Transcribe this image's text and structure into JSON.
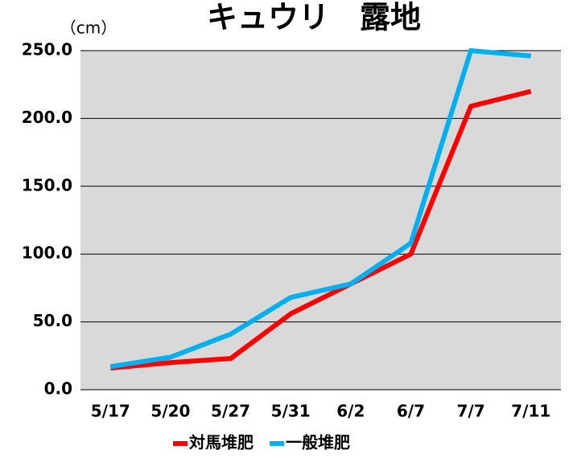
{
  "chart_data": {
    "type": "line",
    "title": "キュウリ　露地",
    "y_unit": "（cm）",
    "categories": [
      "5/17",
      "5/20",
      "5/27",
      "5/31",
      "6/2",
      "6/7",
      "7/7",
      "7/11"
    ],
    "series": [
      {
        "name": "対馬堆肥",
        "color": "#ff0000",
        "values": [
          16,
          20,
          23,
          56,
          78,
          100,
          209,
          220
        ]
      },
      {
        "name": "一般堆肥",
        "color": "#00b0f0",
        "values": [
          17,
          24,
          41,
          68,
          78,
          108,
          250,
          246
        ]
      }
    ],
    "ylim": [
      0,
      250
    ],
    "yticks": [
      {
        "value": 0,
        "label": "0.0"
      },
      {
        "value": 50,
        "label": "50.0"
      },
      {
        "value": 100,
        "label": "100.0"
      },
      {
        "value": 150,
        "label": "150.0"
      },
      {
        "value": 200,
        "label": "200.0"
      },
      {
        "value": 250,
        "label": "250.0"
      }
    ],
    "grid": true,
    "legend": "bottom"
  }
}
